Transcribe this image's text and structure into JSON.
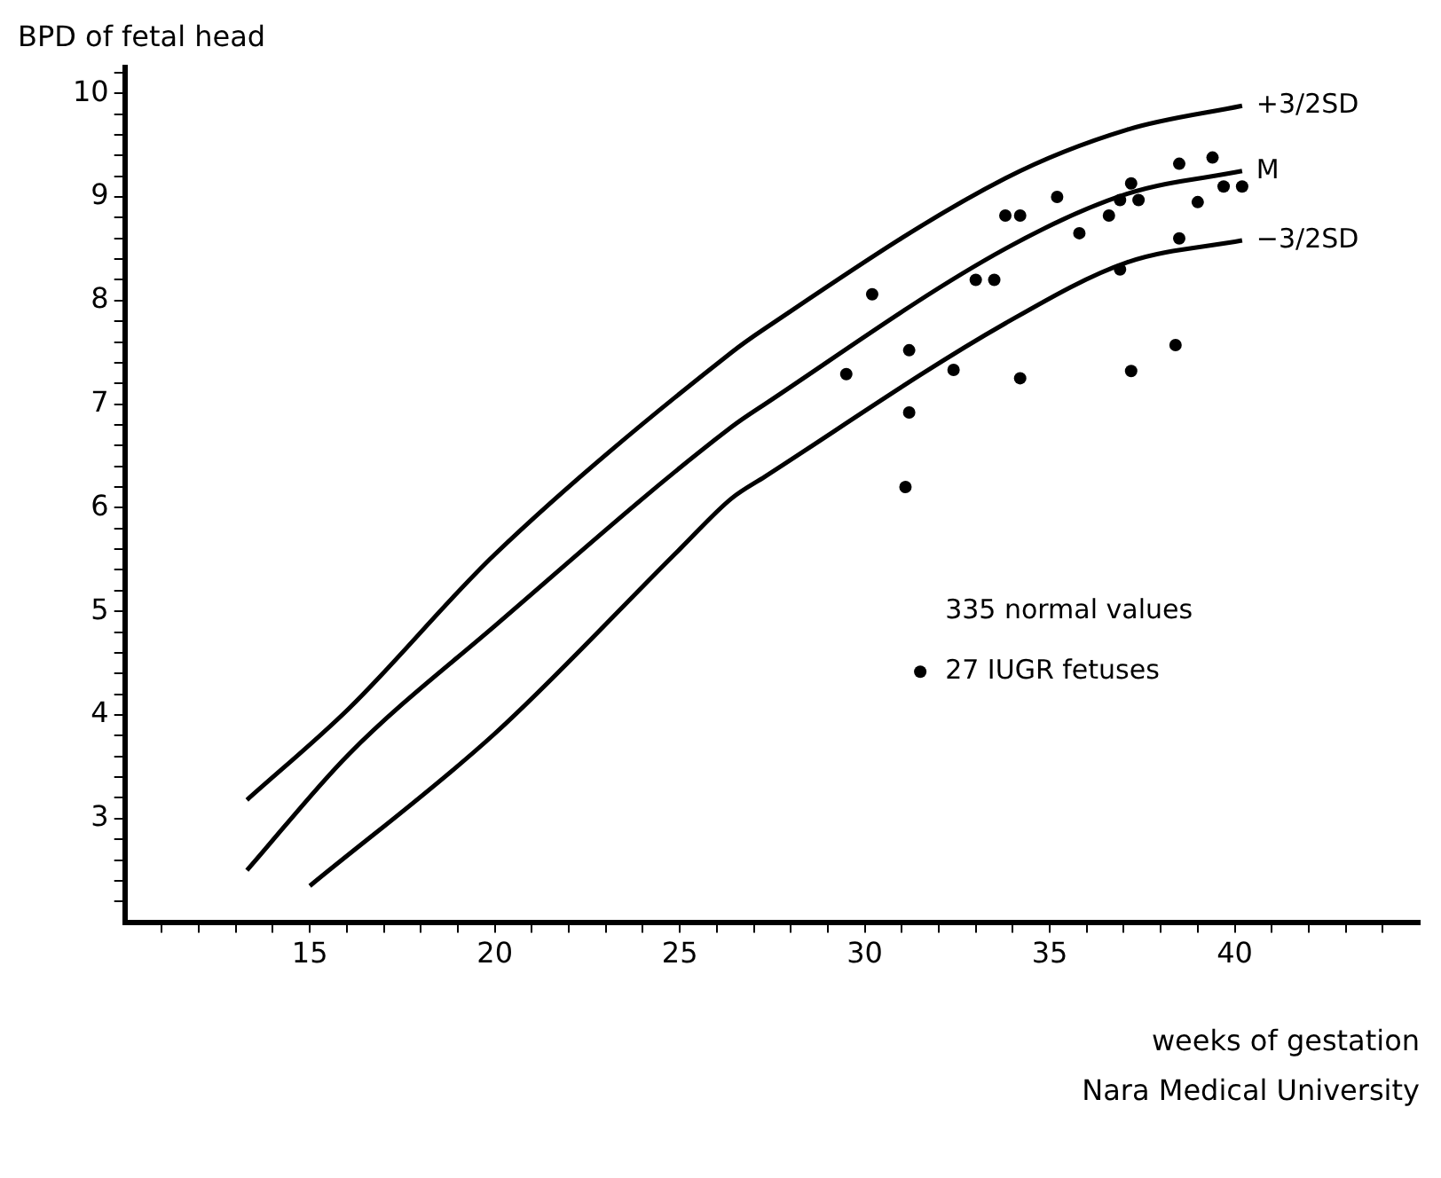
{
  "chart_data": {
    "type": "line",
    "xlabel": "weeks of gestation",
    "ylabel": "BPD of fetal head",
    "annotations": [
      "335 normal values",
      "Nara Medical University"
    ],
    "xlim": [
      10,
      45
    ],
    "ylim": [
      2,
      10.25
    ],
    "xticks": [
      {
        "value": 11,
        "label": null
      },
      {
        "value": 12,
        "label": null
      },
      {
        "value": 13,
        "label": null
      },
      {
        "value": 14,
        "label": null
      },
      15,
      {
        "value": 16,
        "label": null
      },
      {
        "value": 17,
        "label": null
      },
      {
        "value": 18,
        "label": null
      },
      {
        "value": 19,
        "label": null
      },
      20,
      {
        "value": 21,
        "label": null
      },
      {
        "value": 22,
        "label": null
      },
      {
        "value": 23,
        "label": null
      },
      {
        "value": 24,
        "label": null
      },
      25,
      {
        "value": 26,
        "label": null
      },
      {
        "value": 27,
        "label": null
      },
      {
        "value": 28,
        "label": null
      },
      {
        "value": 29,
        "label": null
      },
      30,
      {
        "value": 31,
        "label": null
      },
      {
        "value": 32,
        "label": null
      },
      {
        "value": 33,
        "label": null
      },
      {
        "value": 34,
        "label": null
      },
      35,
      {
        "value": 36,
        "label": null
      },
      {
        "value": 37,
        "label": null
      },
      {
        "value": 38,
        "label": null
      },
      {
        "value": 39,
        "label": null
      },
      40,
      {
        "value": 41,
        "label": null
      },
      {
        "value": 42,
        "label": null
      },
      {
        "value": 43,
        "label": null
      },
      {
        "value": 44,
        "label": null
      }
    ],
    "yticks": [
      {
        "value": 2.2,
        "label": null
      },
      {
        "value": 2.4,
        "label": null
      },
      {
        "value": 2.6,
        "label": null
      },
      {
        "value": 2.8,
        "label": null
      },
      3,
      {
        "value": 3.2,
        "label": null
      },
      {
        "value": 3.4,
        "label": null
      },
      {
        "value": 3.6,
        "label": null
      },
      {
        "value": 3.8,
        "label": null
      },
      4,
      {
        "value": 4.2,
        "label": null
      },
      {
        "value": 4.4,
        "label": null
      },
      {
        "value": 4.6,
        "label": null
      },
      {
        "value": 4.8,
        "label": null
      },
      5,
      {
        "value": 5.2,
        "label": null
      },
      {
        "value": 5.4,
        "label": null
      },
      {
        "value": 5.6,
        "label": null
      },
      {
        "value": 5.8,
        "label": null
      },
      6,
      {
        "value": 6.2,
        "label": null
      },
      {
        "value": 6.4,
        "label": null
      },
      {
        "value": 6.6,
        "label": null
      },
      {
        "value": 6.8,
        "label": null
      },
      7,
      {
        "value": 7.2,
        "label": null
      },
      {
        "value": 7.4,
        "label": null
      },
      {
        "value": 7.6,
        "label": null
      },
      {
        "value": 7.8,
        "label": null
      },
      8,
      {
        "value": 8.2,
        "label": null
      },
      {
        "value": 8.4,
        "label": null
      },
      {
        "value": 8.6,
        "label": null
      },
      {
        "value": 8.8,
        "label": null
      },
      9,
      {
        "value": 9.2,
        "label": null
      },
      {
        "value": 9.4,
        "label": null
      },
      {
        "value": 9.6,
        "label": null
      },
      {
        "value": 9.8,
        "label": null
      },
      10,
      {
        "value": 10.2,
        "label": null
      }
    ],
    "legend": "right",
    "series": [
      {
        "name": "+3/2SD",
        "type": "line",
        "color": "#000000",
        "marker": "none",
        "line_style": "solid",
        "x": [
          13.3,
          16.05,
          20,
          26.4,
          27.3,
          33.8,
          37.1,
          40.2
        ],
        "values": [
          3.18,
          4.06,
          5.55,
          7.5,
          7.73,
          9.18,
          9.65,
          9.88
        ]
      },
      {
        "name": "M",
        "type": "line",
        "color": "#000000",
        "marker": "none",
        "line_style": "solid",
        "x": [
          13.3,
          16.05,
          20,
          26.4,
          27.3,
          33.8,
          37.1,
          40.2
        ],
        "values": [
          2.5,
          3.62,
          4.86,
          6.78,
          7.0,
          8.5,
          9.03,
          9.25
        ]
      },
      {
        "name": "−3/2SD",
        "type": "line",
        "color": "#000000",
        "marker": "none",
        "line_style": "solid",
        "x": [
          15,
          20,
          25,
          26.4,
          27.3,
          33.8,
          37.1,
          40.2
        ],
        "values": [
          2.35,
          3.82,
          5.6,
          6.09,
          6.3,
          7.78,
          8.37,
          8.58
        ]
      },
      {
        "name": "27 IUGR fetuses",
        "type": "scatter",
        "color": "#000000",
        "marker": "circle",
        "x": [
          30.2,
          29.5,
          31.2,
          31.2,
          31.1,
          32.4,
          33.0,
          33.5,
          33.8,
          34.2,
          34.2,
          35.2,
          35.8,
          36.6,
          36.9,
          36.9,
          37.4,
          37.2,
          37.2,
          38.4,
          38.5,
          38.5,
          39.0,
          39.4,
          39.7,
          40.2
        ],
        "values": [
          8.06,
          7.29,
          7.52,
          6.92,
          6.2,
          7.33,
          8.2,
          8.2,
          8.82,
          8.82,
          7.25,
          9.0,
          8.65,
          8.82,
          8.3,
          8.97,
          8.97,
          9.13,
          7.32,
          7.57,
          9.32,
          8.6,
          8.95,
          9.38,
          9.1,
          9.1
        ]
      }
    ]
  }
}
